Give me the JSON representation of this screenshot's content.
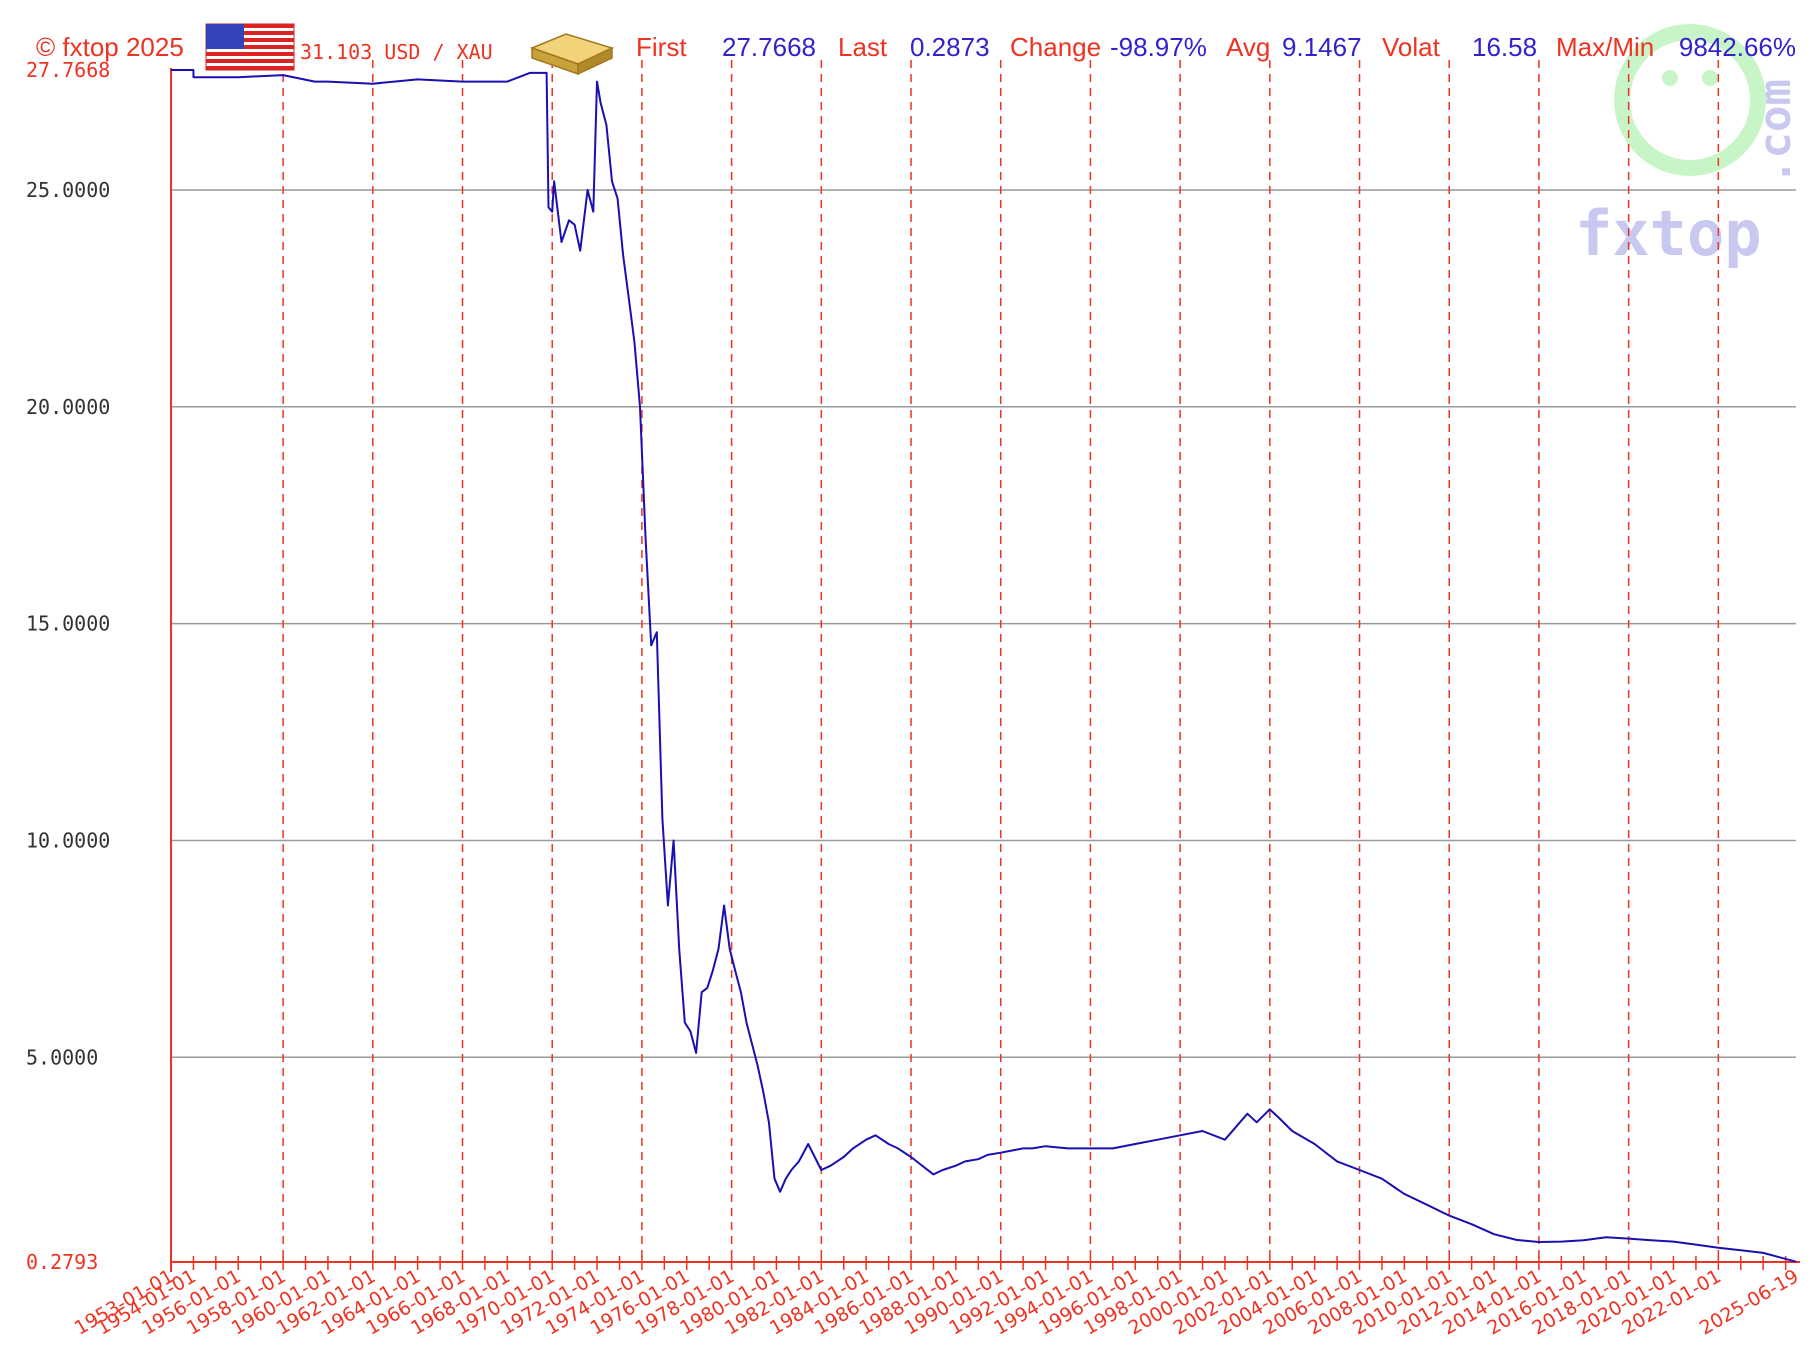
{
  "header": {
    "copyright": "© fxtop 2025",
    "pair": "31.103 USD / XAU",
    "first_label": "First",
    "first_value": "27.7668",
    "last_label": "Last",
    "last_value": "0.2873",
    "change_label": "Change",
    "change_value": "-98.97%",
    "avg_label": "Avg",
    "avg_value": "9.1467",
    "volat_label": "Volat",
    "volat_value": "16.58",
    "maxmin_label": "Max/Min",
    "maxmin_value": "9842.66%"
  },
  "watermark": {
    "brand": "fxtop",
    "suffix": ".com"
  },
  "colors": {
    "accent": "#ee3322",
    "series": "#1a0fb0",
    "value_text": "#3322cc",
    "grid": "#999999",
    "watermark_green": "#c8f5c8",
    "watermark_blue": "#c8c8f0"
  },
  "icons": {
    "flag": "us-flag-icon",
    "gold": "gold-bar-icon"
  },
  "chart_data": {
    "type": "line",
    "x_range": [
      "1953-01-01",
      "2025-06-19"
    ],
    "ylim": [
      0.2793,
      27.7668
    ],
    "ytick_labels": [
      "27.7668",
      "25.0000",
      "20.0000",
      "15.0000",
      "10.0000",
      "5.0000",
      "0.2793"
    ],
    "ytick_values": [
      27.7668,
      25,
      20,
      15,
      10,
      5,
      0.2793
    ],
    "xtick_labels": [
      "1953-01-01",
      "1954-01-01",
      "1956-01-01",
      "1958-01-01",
      "1960-01-01",
      "1962-01-01",
      "1964-01-01",
      "1966-01-01",
      "1968-01-01",
      "1970-01-01",
      "1972-01-01",
      "1974-01-01",
      "1976-01-01",
      "1978-01-01",
      "1980-01-01",
      "1982-01-01",
      "1984-01-01",
      "1986-01-01",
      "1988-01-01",
      "1990-01-01",
      "1992-01-01",
      "1994-01-01",
      "1996-01-01",
      "1998-01-01",
      "2000-01-01",
      "2002-01-01",
      "2004-01-01",
      "2006-01-01",
      "2008-01-01",
      "2010-01-01",
      "2012-01-01",
      "2014-01-01",
      "2016-01-01",
      "2018-01-01",
      "2020-01-01",
      "2022-01-01",
      "2025-06-19"
    ],
    "grid": true,
    "series": [
      {
        "x": [
          "1953-01-01",
          "1954-01-01",
          "1954-01-02",
          "1956-01-01",
          "1958-01-01",
          "1959-06-01",
          "1960-01-01",
          "1962-01-01",
          "1964-01-01",
          "1966-01-01",
          "1966-06-01",
          "1968-01-01",
          "1969-01-01",
          "1969-10-01",
          "1969-11-01",
          "1970-01-01",
          "1970-02-01",
          "1970-06-01",
          "1970-10-01",
          "1971-01-01",
          "1971-04-01",
          "1971-08-01",
          "1971-11-01",
          "1972-01-01",
          "1972-03-01",
          "1972-06-01",
          "1972-09-01",
          "1972-12-01",
          "1973-03-01",
          "1973-06-01",
          "1973-09-01",
          "1973-12-01",
          "1974-03-01",
          "1974-06-01",
          "1974-09-01",
          "1974-12-01",
          "1975-03-01",
          "1975-06-01",
          "1975-09-01",
          "1975-12-01",
          "1976-03-01",
          "1976-06-01",
          "1976-09-01",
          "1976-12-01",
          "1977-03-01",
          "1977-06-01",
          "1977-09-01",
          "1977-12-01",
          "1978-03-01",
          "1978-06-01",
          "1978-09-01",
          "1978-12-01",
          "1979-03-01",
          "1979-06-01",
          "1979-09-01",
          "1979-12-01",
          "1980-03-01",
          "1980-06-01",
          "1980-09-01",
          "1981-01-01",
          "1981-06-01",
          "1982-01-01",
          "1982-06-01",
          "1983-01-01",
          "1983-06-01",
          "1984-01-01",
          "1984-06-01",
          "1985-01-01",
          "1985-06-01",
          "1986-01-01",
          "1987-01-01",
          "1987-06-01",
          "1988-01-01",
          "1988-06-01",
          "1989-01-01",
          "1989-06-01",
          "1990-01-01",
          "1991-01-01",
          "1991-06-01",
          "1992-01-01",
          "1993-01-01",
          "1994-01-01",
          "1995-01-01",
          "1996-01-01",
          "1997-01-01",
          "1998-01-01",
          "1999-01-01",
          "2000-01-01",
          "2001-01-01",
          "2001-06-01",
          "2002-01-01",
          "2002-06-01",
          "2003-01-01",
          "2004-01-01",
          "2005-01-01",
          "2006-01-01",
          "2007-01-01",
          "2008-01-01",
          "2009-01-01",
          "2010-01-01",
          "2011-01-01",
          "2012-01-01",
          "2013-01-01",
          "2014-01-01",
          "2015-01-01",
          "2016-01-01",
          "2017-01-01",
          "2018-01-01",
          "2019-01-01",
          "2020-01-01",
          "2021-01-01",
          "2022-01-01",
          "2023-01-01",
          "2024-01-01",
          "2025-06-19"
        ],
        "values": [
          27.7668,
          27.7668,
          27.6,
          27.6,
          27.65,
          27.5,
          27.5,
          27.45,
          27.55,
          27.5,
          27.5,
          27.5,
          27.7,
          27.7,
          24.6,
          24.5,
          25.2,
          23.8,
          24.3,
          24.2,
          23.6,
          25.0,
          24.5,
          27.5,
          27.0,
          26.5,
          25.2,
          24.8,
          23.5,
          22.5,
          21.5,
          20.0,
          17.0,
          14.5,
          14.8,
          10.5,
          8.5,
          10.0,
          7.5,
          5.8,
          5.6,
          5.1,
          6.5,
          6.6,
          7.0,
          7.5,
          8.5,
          7.5,
          7.0,
          6.5,
          5.8,
          5.3,
          4.8,
          4.2,
          3.5,
          2.2,
          1.9,
          2.2,
          2.4,
          2.6,
          3.0,
          2.4,
          2.5,
          2.7,
          2.9,
          3.1,
          3.2,
          3.0,
          2.9,
          2.7,
          2.3,
          2.4,
          2.5,
          2.6,
          2.65,
          2.75,
          2.8,
          2.9,
          2.9,
          2.95,
          2.9,
          2.9,
          2.9,
          3.0,
          3.1,
          3.2,
          3.3,
          3.1,
          3.7,
          3.5,
          3.8,
          3.6,
          3.3,
          3.0,
          2.6,
          2.4,
          2.2,
          1.85,
          1.6,
          1.35,
          1.15,
          0.92,
          0.79,
          0.74,
          0.75,
          0.78,
          0.85,
          0.82,
          0.78,
          0.75,
          0.68,
          0.61,
          0.55,
          0.49,
          0.2873
        ]
      }
    ]
  }
}
